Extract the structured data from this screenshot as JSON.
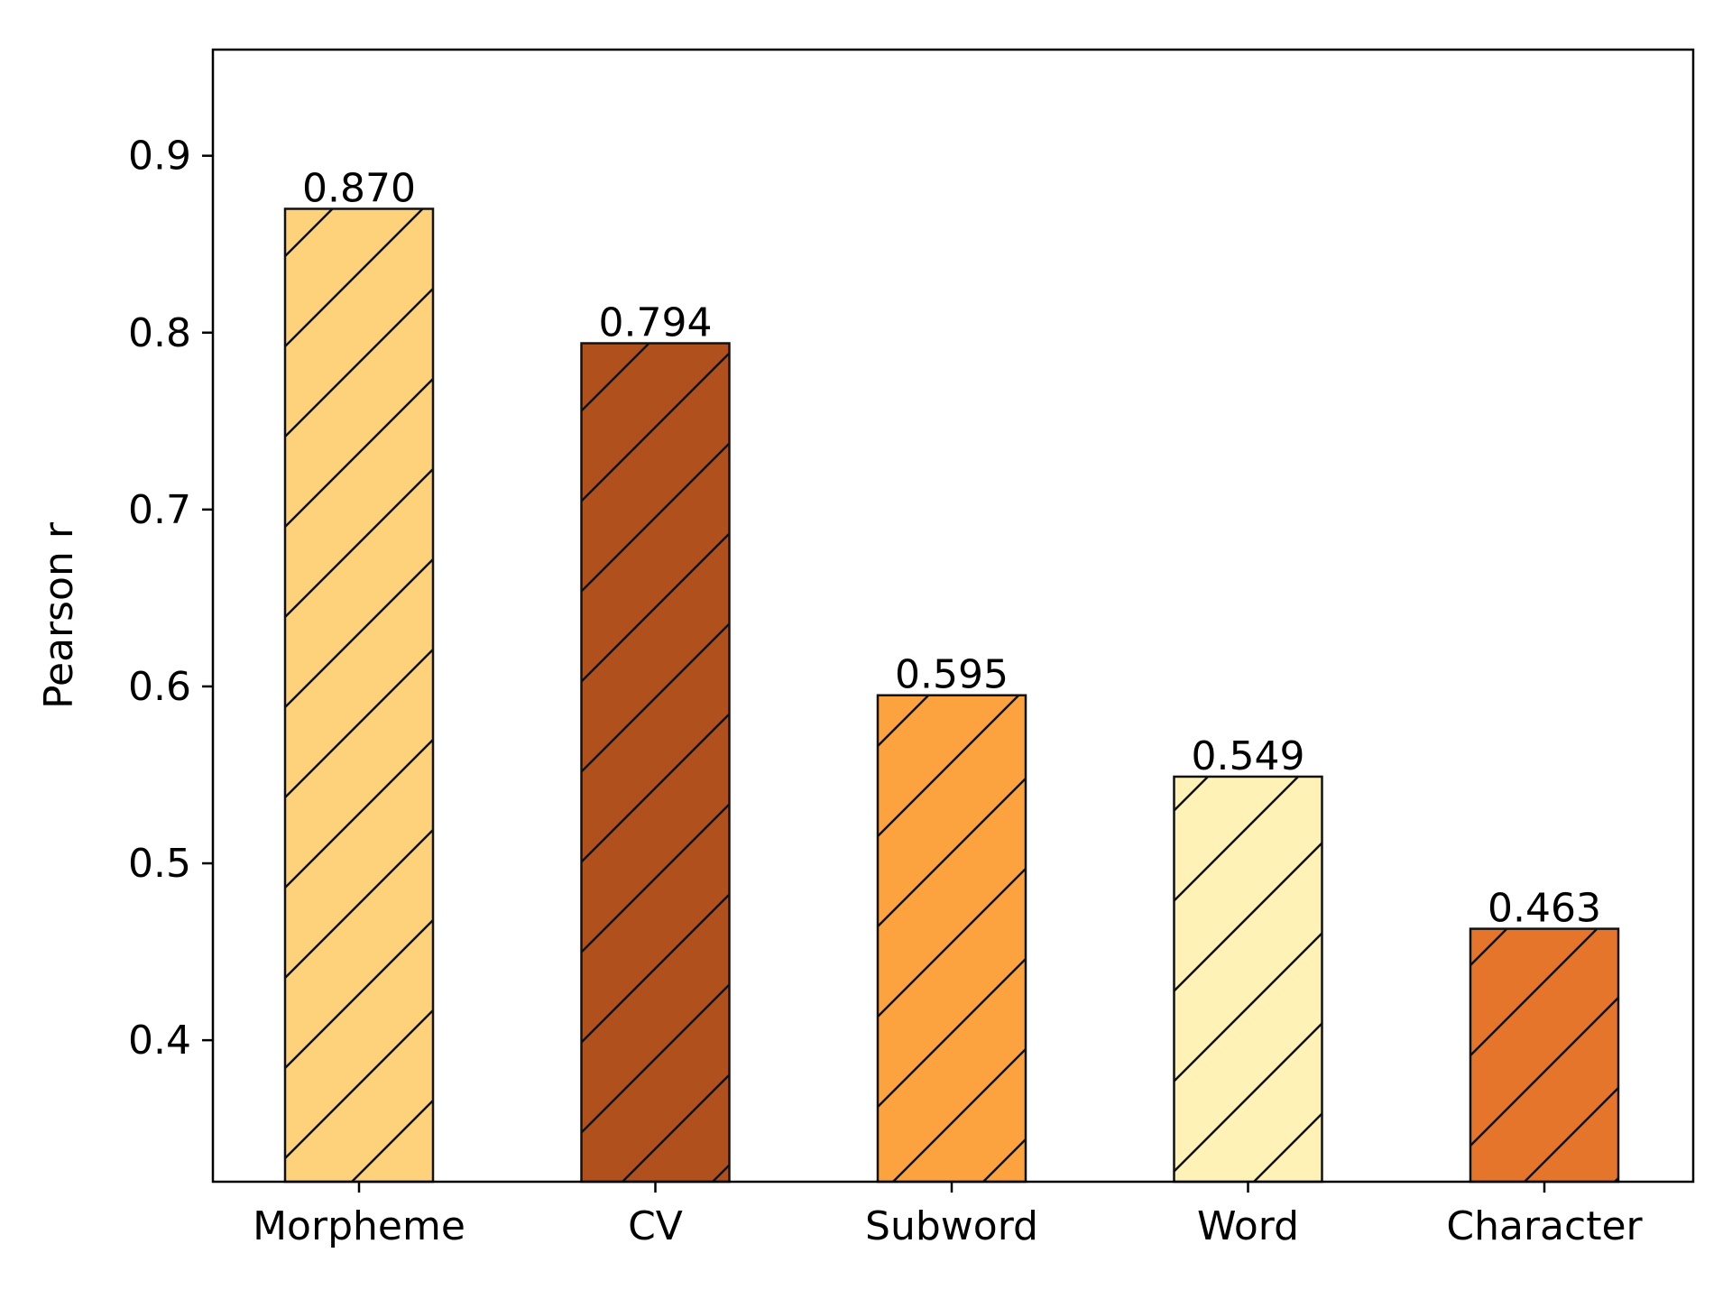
{
  "chart_data": {
    "type": "bar",
    "title": "",
    "xlabel": "",
    "ylabel": "Pearson r",
    "ylim": [
      0.32,
      0.96
    ],
    "yticks": [
      0.4,
      0.5,
      0.6,
      0.7,
      0.8,
      0.9
    ],
    "categories": [
      "Morpheme",
      "CV",
      "Subword",
      "Word",
      "Character"
    ],
    "values": [
      0.87,
      0.794,
      0.595,
      0.549,
      0.463
    ],
    "value_labels": [
      "0.870",
      "0.794",
      "0.595",
      "0.549",
      "0.463"
    ],
    "colors": [
      "#fdd27b",
      "#b0501c",
      "#fca33f",
      "#fef2b6",
      "#e5752a"
    ],
    "hatch": "diagonal",
    "grid": false,
    "legend": "none"
  }
}
